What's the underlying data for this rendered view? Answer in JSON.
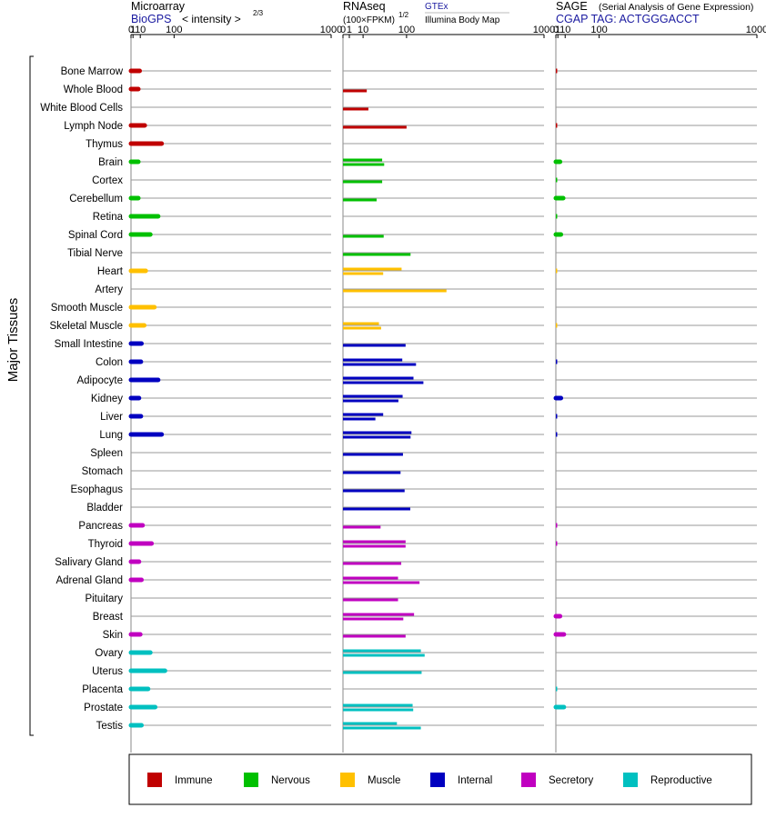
{
  "header": {
    "microarray": {
      "title": "Microarray",
      "source": "BioGPS",
      "unit_prefix": "< intensity >",
      "unit_exp": "2/3"
    },
    "rnaseq": {
      "title": "RNAseq",
      "unit_prefix": "(100×FPKM)",
      "unit_exp": "1/2",
      "source1": "GTEx",
      "source2": "Illumina Body Map"
    },
    "sage": {
      "title": "SAGE",
      "subtitle": "(Serial Analysis of Gene Expression)",
      "tag": "CGAP TAG: ACTGGGACCT"
    }
  },
  "side_label": "Major Tissues",
  "colors": {
    "Immune": "#c00000",
    "Nervous": "#00c000",
    "Muscle": "#ffc000",
    "Internal": "#0000c0",
    "Secretory": "#c000c0",
    "Reproductive": "#00c0c0"
  },
  "legend": [
    {
      "label": "Immune",
      "color": "#c00000"
    },
    {
      "label": "Nervous",
      "color": "#00c000"
    },
    {
      "label": "Muscle",
      "color": "#ffc000"
    },
    {
      "label": "Internal",
      "color": "#0000c0"
    },
    {
      "label": "Secretory",
      "color": "#c000c0"
    },
    {
      "label": "Reproductive",
      "color": "#00c0c0"
    }
  ],
  "chart_data": {
    "type": "bar",
    "scale": "power",
    "panels": [
      {
        "name": "Microarray",
        "power": 0.667,
        "ticks": [
          0,
          1,
          10,
          100,
          1000
        ],
        "xlim": [
          0,
          1000
        ]
      },
      {
        "name": "RNAseq",
        "power": 0.5,
        "ticks": [
          0,
          1,
          10,
          100,
          1000
        ],
        "xlim": [
          0,
          1000
        ]
      },
      {
        "name": "SAGE",
        "power": 0.667,
        "ticks": [
          0,
          1,
          10,
          100,
          1000
        ],
        "xlim": [
          0,
          1000
        ]
      }
    ],
    "tissues": [
      {
        "name": "Bone Marrow",
        "group": "Immune",
        "microarray": 9,
        "rnaseq": [],
        "sage": 0.1
      },
      {
        "name": "Whole Blood",
        "group": "Immune",
        "microarray": 7,
        "rnaseq": [
          14
        ],
        "sage": null
      },
      {
        "name": "White Blood Cells",
        "group": "Immune",
        "microarray": null,
        "rnaseq": [
          16
        ],
        "sage": null
      },
      {
        "name": "Lymph Node",
        "group": "Immune",
        "microarray": 18,
        "rnaseq": [
          100
        ],
        "sage": 0.1
      },
      {
        "name": "Thymus",
        "group": "Immune",
        "microarray": 60,
        "rnaseq": [],
        "sage": null
      },
      {
        "name": "Brain",
        "group": "Nervous",
        "microarray": 7,
        "rnaseq": [
          38,
          42
        ],
        "sage": 3
      },
      {
        "name": "Cortex",
        "group": "Nervous",
        "microarray": null,
        "rnaseq": [
          38
        ],
        "sage": 0.05
      },
      {
        "name": "Cerebellum",
        "group": "Nervous",
        "microarray": 7,
        "rnaseq": [
          28
        ],
        "sage": 7
      },
      {
        "name": "Retina",
        "group": "Nervous",
        "microarray": 50,
        "rnaseq": [],
        "sage": 0.05
      },
      {
        "name": "Spinal Cord",
        "group": "Nervous",
        "microarray": 30,
        "rnaseq": [
          41
        ],
        "sage": 4
      },
      {
        "name": "Tibial Nerve",
        "group": "Nervous",
        "microarray": null,
        "rnaseq": [
          113
        ],
        "sage": null
      },
      {
        "name": "Heart",
        "group": "Muscle",
        "microarray": 20,
        "rnaseq": [
          85,
          40
        ],
        "sage": 0.05
      },
      {
        "name": "Artery",
        "group": "Muscle",
        "microarray": null,
        "rnaseq": [
          265
        ],
        "sage": null
      },
      {
        "name": "Smooth Muscle",
        "group": "Muscle",
        "microarray": 40,
        "rnaseq": [],
        "sage": null
      },
      {
        "name": "Skeletal Muscle",
        "group": "Muscle",
        "microarray": 17,
        "rnaseq": [
          32,
          36
        ],
        "sage": 0.05
      },
      {
        "name": "Small Intestine",
        "group": "Internal",
        "microarray": 12,
        "rnaseq": [
          97
        ],
        "sage": null
      },
      {
        "name": "Colon",
        "group": "Internal",
        "microarray": 11,
        "rnaseq": [
          87,
          132
        ],
        "sage": 0.1
      },
      {
        "name": "Adipocyte",
        "group": "Internal",
        "microarray": 50,
        "rnaseq": [
          123,
          160
        ],
        "sage": null
      },
      {
        "name": "Kidney",
        "group": "Internal",
        "microarray": 8,
        "rnaseq": [
          88,
          76
        ],
        "sage": 4
      },
      {
        "name": "Liver",
        "group": "Internal",
        "microarray": 11,
        "rnaseq": [
          40,
          26
        ],
        "sage": 0.1
      },
      {
        "name": "Lung",
        "group": "Internal",
        "microarray": 60,
        "rnaseq": [
          116,
          113
        ],
        "sage": 0.1
      },
      {
        "name": "Spleen",
        "group": "Internal",
        "microarray": null,
        "rnaseq": [
          89
        ],
        "sage": null
      },
      {
        "name": "Stomach",
        "group": "Internal",
        "microarray": null,
        "rnaseq": [
          82
        ],
        "sage": null
      },
      {
        "name": "Esophagus",
        "group": "Internal",
        "microarray": null,
        "rnaseq": [
          94
        ],
        "sage": null
      },
      {
        "name": "Bladder",
        "group": "Internal",
        "microarray": null,
        "rnaseq": [
          112
        ],
        "sage": null
      },
      {
        "name": "Pancreas",
        "group": "Secretory",
        "microarray": 14,
        "rnaseq": [
          35
        ],
        "sage": 0.1
      },
      {
        "name": "Thyroid",
        "group": "Secretory",
        "microarray": 33,
        "rnaseq": [
          97,
          97
        ],
        "sage": 0.1
      },
      {
        "name": "Salivary Gland",
        "group": "Secretory",
        "microarray": 8,
        "rnaseq": [
          84
        ],
        "sage": null
      },
      {
        "name": "Adrenal Gland",
        "group": "Secretory",
        "microarray": 12,
        "rnaseq": [
          75,
          145
        ],
        "sage": null
      },
      {
        "name": "Pituitary",
        "group": "Secretory",
        "microarray": null,
        "rnaseq": [
          75
        ],
        "sage": null
      },
      {
        "name": "Breast",
        "group": "Secretory",
        "microarray": null,
        "rnaseq": [
          125,
          90
        ],
        "sage": 3
      },
      {
        "name": "Skin",
        "group": "Secretory",
        "microarray": 10,
        "rnaseq": [
          97
        ],
        "sage": 8
      },
      {
        "name": "Ovary",
        "group": "Reproductive",
        "microarray": 30,
        "rnaseq": [
          150,
          165
        ],
        "sage": null
      },
      {
        "name": "Uterus",
        "group": "Reproductive",
        "microarray": 70,
        "rnaseq": [
          153
        ],
        "sage": null
      },
      {
        "name": "Placenta",
        "group": "Reproductive",
        "microarray": 25,
        "rnaseq": [],
        "sage": 0.05
      },
      {
        "name": "Prostate",
        "group": "Reproductive",
        "microarray": 42,
        "rnaseq": [
          120,
          122
        ],
        "sage": 8
      },
      {
        "name": "Testis",
        "group": "Reproductive",
        "microarray": 12,
        "rnaseq": [
          72,
          150
        ],
        "sage": null
      }
    ]
  }
}
